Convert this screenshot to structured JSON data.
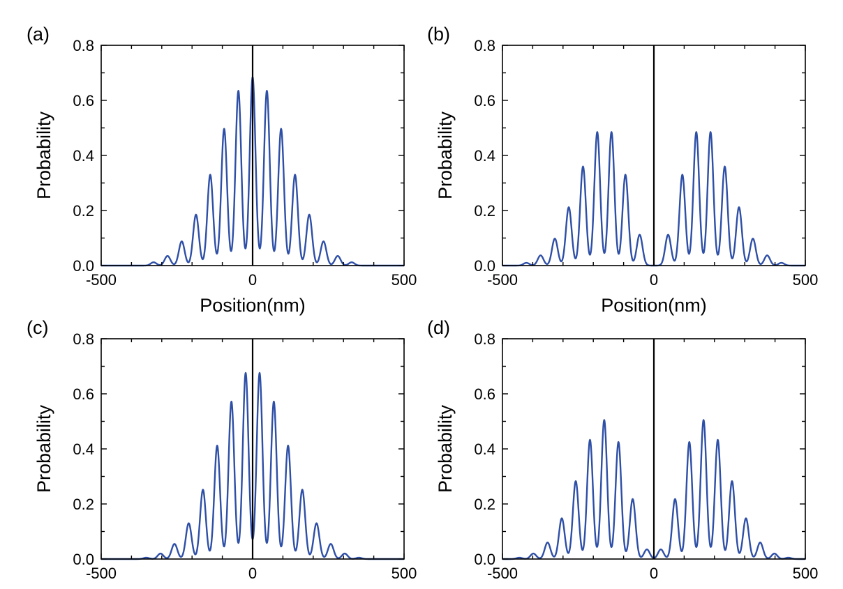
{
  "colors": {
    "curve": "#2e4fa6",
    "axis": "#000000",
    "center_line": "#000000"
  },
  "chart_data": [
    {
      "type": "line",
      "panel_label": "(a)",
      "xlabel": "Position(nm)",
      "ylabel": "Probability",
      "xlim": [
        -500,
        500
      ],
      "ylim": [
        0,
        0.8
      ],
      "xticks": [
        "-500",
        "0",
        "500"
      ],
      "yticks": [
        "0.0",
        "0.2",
        "0.4",
        "0.6",
        "0.8"
      ],
      "center_line_x": 0,
      "peak_x": [
        -327,
        -281,
        -234,
        -187,
        -140,
        -94,
        -47,
        0,
        47,
        94,
        140,
        187,
        234,
        281,
        327
      ],
      "peak_y": [
        0.012,
        0.035,
        0.088,
        0.185,
        0.33,
        0.497,
        0.635,
        0.685,
        0.635,
        0.497,
        0.33,
        0.185,
        0.088,
        0.035,
        0.012
      ]
    },
    {
      "type": "line",
      "panel_label": "(b)",
      "xlabel": "Position(nm)",
      "ylabel": "Probability",
      "xlim": [
        -500,
        500
      ],
      "ylim": [
        0,
        0.8
      ],
      "xticks": [
        "-500",
        "0",
        "500"
      ],
      "yticks": [
        "0.0",
        "0.2",
        "0.4",
        "0.6",
        "0.8"
      ],
      "center_line_x": 0,
      "peak_x": [
        -421,
        -374,
        -327,
        -281,
        -234,
        -187,
        -140,
        -94,
        -47,
        47,
        94,
        140,
        187,
        234,
        281,
        327,
        374,
        421
      ],
      "peak_y": [
        0.01,
        0.037,
        0.098,
        0.212,
        0.36,
        0.485,
        0.485,
        0.33,
        0.112,
        0.112,
        0.33,
        0.485,
        0.485,
        0.36,
        0.212,
        0.098,
        0.037,
        0.01
      ]
    },
    {
      "type": "line",
      "panel_label": "(c)",
      "xlabel": "",
      "ylabel": "Probability",
      "xlim": [
        -500,
        500
      ],
      "ylim": [
        0,
        0.8
      ],
      "xticks": [
        "-500",
        "0",
        "500"
      ],
      "yticks": [
        "0.0",
        "0.2",
        "0.4",
        "0.6",
        "0.8"
      ],
      "center_line_x": 0,
      "peak_x": [
        -351,
        -304,
        -258,
        -211,
        -164,
        -117,
        -70,
        -23,
        23,
        70,
        117,
        164,
        211,
        258,
        304,
        351
      ],
      "peak_y": [
        0.005,
        0.02,
        0.055,
        0.13,
        0.252,
        0.412,
        0.572,
        0.676,
        0.676,
        0.572,
        0.412,
        0.252,
        0.13,
        0.055,
        0.02,
        0.005
      ]
    },
    {
      "type": "line",
      "panel_label": "(d)",
      "xlabel": "",
      "ylabel": "Probability",
      "xlim": [
        -500,
        500
      ],
      "ylim": [
        0,
        0.8
      ],
      "xticks": [
        "-500",
        "0",
        "500"
      ],
      "yticks": [
        "0.0",
        "0.2",
        "0.4",
        "0.6",
        "0.8"
      ],
      "center_line_x": 0,
      "peak_x": [
        -444,
        -398,
        -351,
        -304,
        -258,
        -211,
        -164,
        -117,
        -70,
        -23,
        23,
        70,
        117,
        164,
        211,
        258,
        304,
        351,
        398,
        444
      ],
      "peak_y": [
        0.005,
        0.02,
        0.06,
        0.148,
        0.283,
        0.433,
        0.505,
        0.425,
        0.218,
        0.035,
        0.035,
        0.218,
        0.425,
        0.505,
        0.433,
        0.283,
        0.148,
        0.06,
        0.02,
        0.005
      ]
    }
  ]
}
